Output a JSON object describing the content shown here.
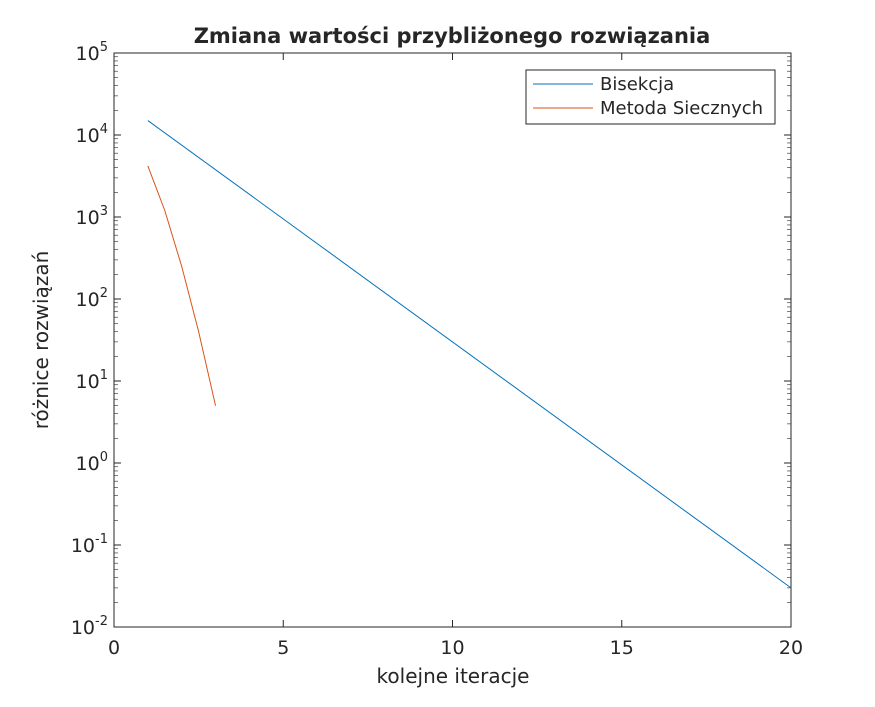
{
  "chart_data": {
    "type": "line",
    "title": "Zmiana wartości przybliżonego rozwiązania",
    "xlabel": "kolejne iteracje",
    "ylabel": "różnice rozwiązań",
    "xlim": [
      0,
      20
    ],
    "ylim": [
      0.01,
      100000
    ],
    "yscale": "log",
    "xticks": [
      0,
      5,
      10,
      15,
      20
    ],
    "xtick_labels": [
      "0",
      "5",
      "10",
      "15",
      "20"
    ],
    "yticks": [
      {
        "value": 0.01,
        "base": "10",
        "exp": "-2"
      },
      {
        "value": 0.1,
        "base": "10",
        "exp": "-1"
      },
      {
        "value": 1,
        "base": "10",
        "exp": "0"
      },
      {
        "value": 10,
        "base": "10",
        "exp": "1"
      },
      {
        "value": 100,
        "base": "10",
        "exp": "2"
      },
      {
        "value": 1000,
        "base": "10",
        "exp": "3"
      },
      {
        "value": 10000,
        "base": "10",
        "exp": "4"
      },
      {
        "value": 100000,
        "base": "10",
        "exp": "5"
      }
    ],
    "grid": false,
    "legend_position": "top-right",
    "series": [
      {
        "name": "Bisekcja",
        "color": "#0072BD",
        "x": [
          1,
          20
        ],
        "y": [
          15000,
          0.03
        ]
      },
      {
        "name": "Metoda Siecznych",
        "color": "#D95319",
        "x": [
          1,
          1.5,
          2,
          2.5,
          3
        ],
        "y": [
          4200,
          1200,
          250,
          40,
          5
        ]
      }
    ]
  }
}
